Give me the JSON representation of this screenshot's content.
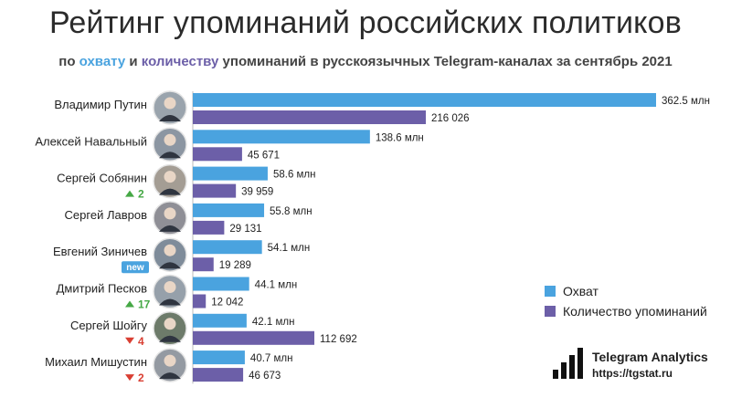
{
  "header": {
    "title": "Рейтинг упоминаний российских политиков",
    "subtitle_prefix": "по ",
    "subtitle_reach": "охвату",
    "subtitle_and": " и ",
    "subtitle_count": "количеству",
    "subtitle_rest": " упоминаний в русскоязычных Telegram-каналах за сентябрь 2021"
  },
  "colors": {
    "reach": "#4aa3df",
    "count": "#6c5fa8",
    "up": "#45a845",
    "down": "#d93f33",
    "new": "#4aa3df"
  },
  "legend": {
    "reach": "Охват",
    "count": "Количество упоминаний"
  },
  "brand": {
    "name": "Telegram Analytics",
    "url": "https://tgstat.ru"
  },
  "chart_data": {
    "type": "bar",
    "orientation": "horizontal",
    "categories": [
      "Владимир Путин",
      "Алексей Навальный",
      "Сергей Собянин",
      "Сергей Лавров",
      "Евгений Зиничев",
      "Дмитрий Песков",
      "Сергей Шойгу",
      "Михаил Мишустин"
    ],
    "series": [
      {
        "name": "Охват",
        "values": [
          362.5,
          138.6,
          58.6,
          55.8,
          54.1,
          44.1,
          42.1,
          40.7
        ],
        "labels": [
          "362.5 млн",
          "138.6 млн",
          "58.6 млн",
          "55.8 млн",
          "54.1 млн",
          "44.1 млн",
          "42.1 млн",
          "40.7 млн"
        ]
      },
      {
        "name": "Количество упоминаний",
        "values": [
          216026,
          45671,
          39959,
          29131,
          19289,
          12042,
          112692,
          46673
        ],
        "labels": [
          "216 026",
          "45 671",
          "39 959",
          "29 131",
          "19 289",
          "12 042",
          "112 692",
          "46 673"
        ]
      }
    ],
    "rank_change": [
      {
        "dir": "",
        "text": ""
      },
      {
        "dir": "",
        "text": ""
      },
      {
        "dir": "up",
        "text": "2"
      },
      {
        "dir": "",
        "text": ""
      },
      {
        "dir": "new",
        "text": "new"
      },
      {
        "dir": "up",
        "text": "17"
      },
      {
        "dir": "down",
        "text": "4"
      },
      {
        "dir": "down",
        "text": "2"
      }
    ],
    "legend_position": "right"
  }
}
